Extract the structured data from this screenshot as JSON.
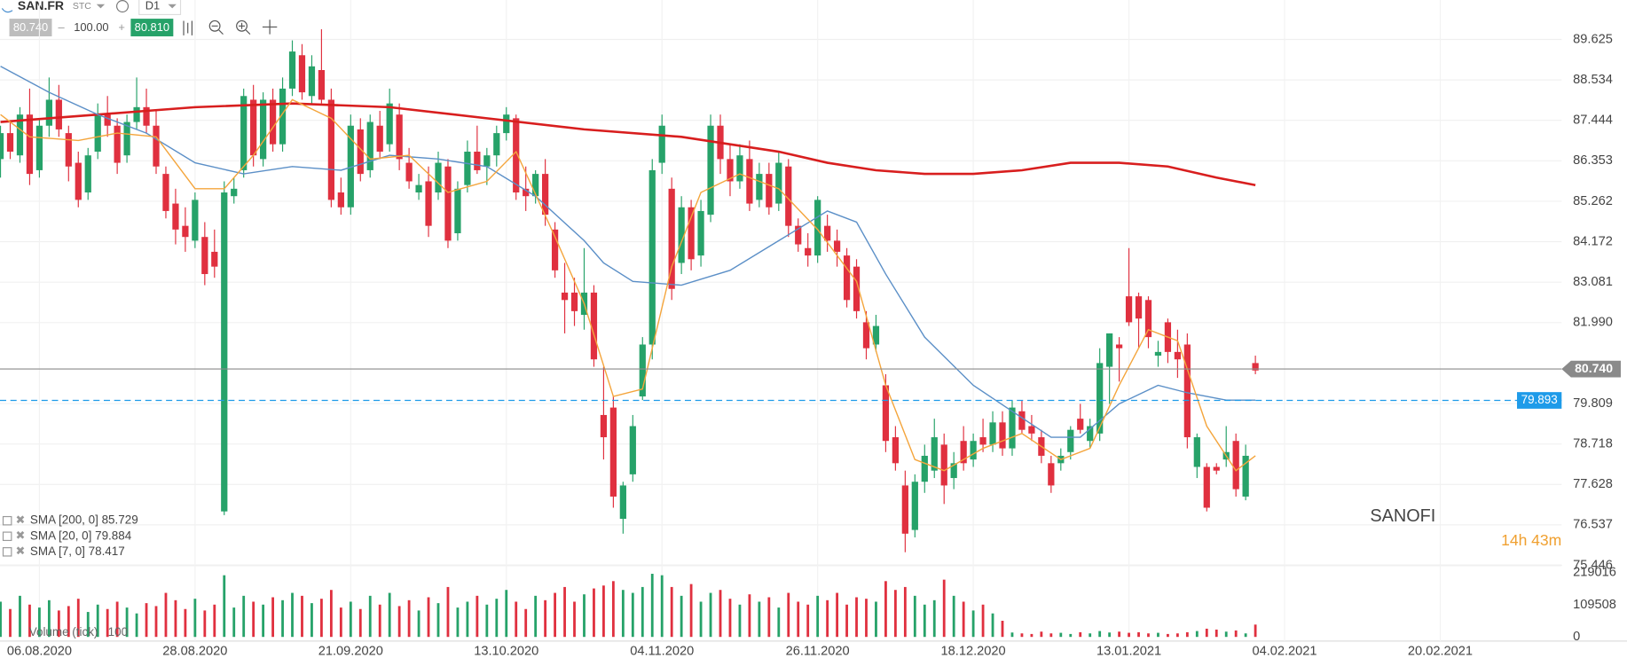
{
  "header": {
    "symbol": "SAN.FR",
    "market": "STC",
    "timeframe": "D1",
    "bid": "80.740",
    "volume": "100.00",
    "ask": "80.810"
  },
  "chart_data": {
    "type": "candlestick",
    "title": "SANOFI",
    "countdown": "14h 43m",
    "xlim": [
      -0.05,
      160.48
    ],
    "xticks": [
      {
        "value": 4,
        "label": "06.08.2020"
      },
      {
        "value": 20,
        "label": "28.08.2020"
      },
      {
        "value": 36,
        "label": "21.09.2020"
      },
      {
        "value": 52,
        "label": "13.10.2020"
      },
      {
        "value": 68,
        "label": "04.11.2020"
      },
      {
        "value": 84,
        "label": "26.11.2020"
      },
      {
        "value": 100,
        "label": "18.12.2020"
      },
      {
        "value": 116,
        "label": "13.01.2021"
      },
      {
        "value": 132,
        "label": "04.02.2021"
      },
      {
        "value": 148,
        "label": "20.02.2021"
      }
    ],
    "ylim": [
      75.446,
      90.688
    ],
    "yticks": [
      {
        "value": 89.625,
        "label": "89.625"
      },
      {
        "value": 88.534,
        "label": "88.534"
      },
      {
        "value": 87.444,
        "label": "87.444"
      },
      {
        "value": 86.353,
        "label": "86.353"
      },
      {
        "value": 85.262,
        "label": "85.262"
      },
      {
        "value": 84.172,
        "label": "84.172"
      },
      {
        "value": 83.081,
        "label": "83.081"
      },
      {
        "value": 81.99,
        "label": "81.990"
      },
      {
        "value": 79.809,
        "label": "79.809"
      },
      {
        "value": 78.718,
        "label": "78.718"
      },
      {
        "value": 77.628,
        "label": "77.628"
      },
      {
        "value": 76.537,
        "label": "76.537"
      },
      {
        "value": 75.446,
        "label": "75.446"
      }
    ],
    "up_color": "#26a269",
    "down_color": "#e0303f",
    "candles": [
      [
        86.4,
        87.3,
        85.9,
        87.1
      ],
      [
        87.1,
        87.4,
        86.4,
        86.6
      ],
      [
        86.5,
        87.8,
        86.3,
        87.6
      ],
      [
        87.6,
        88.3,
        85.7,
        86.0
      ],
      [
        86.1,
        87.5,
        85.9,
        87.3
      ],
      [
        87.3,
        88.6,
        87.0,
        88.0
      ],
      [
        88.0,
        88.4,
        87.0,
        87.2
      ],
      [
        87.1,
        87.3,
        85.8,
        86.2
      ],
      [
        86.3,
        86.6,
        85.1,
        85.3
      ],
      [
        85.5,
        86.7,
        85.3,
        86.5
      ],
      [
        86.6,
        87.9,
        86.4,
        87.6
      ],
      [
        87.6,
        88.1,
        87.0,
        87.3
      ],
      [
        87.3,
        87.5,
        86.0,
        86.3
      ],
      [
        86.5,
        87.6,
        86.3,
        87.4
      ],
      [
        87.4,
        88.6,
        87.2,
        87.8
      ],
      [
        87.8,
        88.3,
        87.1,
        87.3
      ],
      [
        87.3,
        87.7,
        86.0,
        86.2
      ],
      [
        86.0,
        86.2,
        84.8,
        85.0
      ],
      [
        85.2,
        85.6,
        84.1,
        84.5
      ],
      [
        84.6,
        85.1,
        83.9,
        84.3
      ],
      [
        84.2,
        85.5,
        84.0,
        85.3
      ],
      [
        84.3,
        84.7,
        83.0,
        83.3
      ],
      [
        83.9,
        84.5,
        83.2,
        83.5
      ],
      [
        76.9,
        85.8,
        76.8,
        85.5
      ],
      [
        85.4,
        85.9,
        85.2,
        85.6
      ],
      [
        86.1,
        88.3,
        85.9,
        88.1
      ],
      [
        88.0,
        88.4,
        86.2,
        86.5
      ],
      [
        86.4,
        88.2,
        86.2,
        88.0
      ],
      [
        88.0,
        88.3,
        86.6,
        86.8
      ],
      [
        86.8,
        88.6,
        86.6,
        88.3
      ],
      [
        88.3,
        89.6,
        88.1,
        89.3
      ],
      [
        89.2,
        89.5,
        88.0,
        88.2
      ],
      [
        88.1,
        89.2,
        87.9,
        88.9
      ],
      [
        88.8,
        89.9,
        87.9,
        88.0
      ],
      [
        88.0,
        88.3,
        85.1,
        85.3
      ],
      [
        85.5,
        85.9,
        84.9,
        85.1
      ],
      [
        85.1,
        87.6,
        84.9,
        87.3
      ],
      [
        87.2,
        87.5,
        85.8,
        86.0
      ],
      [
        86.1,
        87.6,
        85.9,
        87.4
      ],
      [
        87.3,
        87.7,
        86.4,
        86.6
      ],
      [
        86.8,
        88.3,
        86.6,
        87.9
      ],
      [
        87.6,
        87.9,
        86.1,
        86.4
      ],
      [
        86.3,
        86.7,
        85.6,
        85.8
      ],
      [
        85.5,
        86.0,
        85.3,
        85.7
      ],
      [
        85.8,
        86.2,
        84.3,
        84.6
      ],
      [
        85.5,
        86.6,
        85.3,
        86.3
      ],
      [
        86.2,
        86.4,
        84.0,
        84.2
      ],
      [
        84.4,
        85.8,
        84.2,
        85.6
      ],
      [
        85.7,
        86.9,
        85.5,
        86.6
      ],
      [
        86.6,
        87.3,
        86.0,
        86.1
      ],
      [
        86.2,
        86.7,
        85.7,
        86.5
      ],
      [
        86.5,
        87.3,
        86.2,
        87.1
      ],
      [
        87.1,
        87.8,
        86.9,
        87.6
      ],
      [
        87.5,
        87.6,
        85.3,
        85.5
      ],
      [
        85.6,
        86.2,
        85.0,
        85.4
      ],
      [
        85.4,
        86.1,
        85.2,
        86.0
      ],
      [
        86.0,
        86.4,
        84.6,
        84.9
      ],
      [
        84.5,
        84.7,
        83.2,
        83.4
      ],
      [
        82.8,
        83.6,
        81.7,
        82.6
      ],
      [
        82.8,
        83.2,
        81.9,
        82.3
      ],
      [
        82.2,
        84.0,
        81.8,
        82.8
      ],
      [
        82.8,
        83.0,
        80.8,
        81.0
      ],
      [
        79.5,
        80.8,
        78.3,
        78.9
      ],
      [
        79.7,
        80.0,
        77.0,
        77.3
      ],
      [
        76.7,
        77.7,
        76.3,
        77.6
      ],
      [
        77.9,
        79.5,
        77.7,
        79.2
      ],
      [
        80.0,
        81.6,
        79.9,
        81.4
      ],
      [
        81.4,
        86.4,
        81.0,
        86.1
      ],
      [
        86.3,
        87.6,
        86.0,
        87.3
      ],
      [
        85.6,
        85.9,
        82.6,
        82.9
      ],
      [
        83.6,
        85.4,
        83.3,
        85.1
      ],
      [
        85.1,
        85.3,
        83.4,
        83.7
      ],
      [
        83.8,
        85.3,
        83.5,
        85.0
      ],
      [
        84.9,
        87.6,
        84.7,
        87.3
      ],
      [
        87.3,
        87.6,
        86.0,
        86.4
      ],
      [
        86.4,
        86.8,
        85.4,
        85.8
      ],
      [
        85.8,
        86.8,
        85.6,
        86.5
      ],
      [
        86.4,
        86.9,
        85.0,
        85.2
      ],
      [
        85.3,
        86.3,
        85.1,
        86.0
      ],
      [
        86.0,
        86.3,
        84.9,
        85.1
      ],
      [
        85.2,
        86.6,
        85.0,
        86.3
      ],
      [
        86.2,
        86.4,
        84.3,
        84.6
      ],
      [
        84.6,
        84.8,
        83.9,
        84.1
      ],
      [
        84.0,
        84.4,
        83.5,
        83.8
      ],
      [
        83.8,
        85.4,
        83.6,
        85.3
      ],
      [
        84.6,
        84.9,
        83.9,
        84.2
      ],
      [
        84.2,
        84.5,
        83.5,
        83.9
      ],
      [
        83.8,
        84.0,
        82.4,
        82.6
      ],
      [
        83.5,
        83.7,
        82.1,
        82.3
      ],
      [
        82.0,
        82.3,
        81.0,
        81.3
      ],
      [
        81.4,
        82.2,
        81.2,
        81.9
      ],
      [
        80.3,
        80.6,
        78.5,
        78.8
      ],
      [
        78.9,
        79.2,
        78.0,
        78.2
      ],
      [
        77.6,
        78.0,
        75.8,
        76.3
      ],
      [
        76.4,
        77.9,
        76.2,
        77.7
      ],
      [
        77.7,
        78.7,
        77.4,
        78.4
      ],
      [
        78.0,
        79.4,
        77.8,
        78.9
      ],
      [
        78.7,
        79.0,
        77.1,
        77.6
      ],
      [
        77.8,
        78.5,
        77.5,
        78.2
      ],
      [
        78.8,
        79.2,
        78.0,
        78.2
      ],
      [
        78.3,
        79.0,
        78.1,
        78.8
      ],
      [
        78.9,
        79.4,
        78.5,
        78.7
      ],
      [
        78.7,
        79.6,
        78.5,
        79.3
      ],
      [
        79.3,
        79.6,
        78.4,
        78.6
      ],
      [
        78.6,
        79.9,
        78.4,
        79.7
      ],
      [
        79.6,
        79.9,
        79.0,
        79.1
      ],
      [
        79.2,
        79.5,
        78.8,
        79.0
      ],
      [
        78.9,
        79.1,
        78.2,
        78.4
      ],
      [
        78.2,
        78.4,
        77.4,
        77.6
      ],
      [
        78.2,
        78.6,
        78.0,
        78.4
      ],
      [
        78.5,
        79.2,
        78.3,
        79.1
      ],
      [
        79.4,
        79.8,
        79.0,
        79.1
      ],
      [
        78.8,
        79.4,
        78.6,
        79.2
      ],
      [
        79.0,
        81.3,
        78.8,
        80.9
      ],
      [
        80.8,
        81.7,
        79.8,
        81.7
      ],
      [
        81.4,
        81.6,
        80.4,
        81.3
      ],
      [
        82.7,
        84.0,
        81.9,
        82.0
      ],
      [
        82.7,
        82.8,
        81.3,
        82.1
      ],
      [
        82.6,
        82.7,
        81.3,
        81.6
      ],
      [
        81.1,
        81.5,
        80.8,
        81.2
      ],
      [
        82.0,
        82.1,
        80.9,
        81.2
      ],
      [
        81.2,
        81.8,
        80.5,
        81.0
      ],
      [
        81.4,
        81.7,
        78.6,
        78.9
      ],
      [
        78.1,
        79.0,
        77.8,
        78.9
      ],
      [
        78.1,
        78.2,
        76.9,
        77.0
      ],
      [
        78.1,
        78.2,
        77.9,
        78.0
      ],
      [
        78.3,
        79.2,
        78.1,
        78.5
      ],
      [
        78.8,
        79.0,
        77.3,
        77.5
      ],
      [
        77.3,
        78.7,
        77.2,
        78.4
      ],
      [
        80.9,
        81.1,
        80.6,
        80.7
      ]
    ],
    "volume": {
      "name": "Volume (tick)",
      "period": "100",
      "ylim": [
        0,
        236680
      ],
      "yticks": [
        0,
        109508,
        219016
      ],
      "values": [
        120000,
        95000,
        140000,
        110000,
        100000,
        125000,
        90000,
        105000,
        130000,
        85000,
        110000,
        95000,
        120000,
        100000,
        80000,
        115000,
        105000,
        150000,
        125000,
        95000,
        130000,
        90000,
        110000,
        210000,
        100000,
        140000,
        120000,
        110000,
        135000,
        125000,
        150000,
        140000,
        115000,
        130000,
        160000,
        100000,
        120000,
        95000,
        140000,
        110000,
        150000,
        105000,
        125000,
        90000,
        135000,
        115000,
        170000,
        100000,
        120000,
        140000,
        110000,
        130000,
        160000,
        120000,
        95000,
        140000,
        125000,
        150000,
        170000,
        120000,
        145000,
        165000,
        175000,
        190000,
        160000,
        150000,
        170000,
        215000,
        210000,
        170000,
        140000,
        180000,
        120000,
        150000,
        160000,
        130000,
        110000,
        145000,
        120000,
        135000,
        100000,
        150000,
        120000,
        110000,
        140000,
        125000,
        150000,
        110000,
        135000,
        130000,
        120000,
        190000,
        160000,
        170000,
        140000,
        110000,
        125000,
        195000,
        140000,
        120000,
        90000,
        110000,
        80000,
        55000,
        15000,
        12000,
        10000,
        18000,
        12000,
        14000,
        10000,
        16000,
        12000,
        20000,
        15000,
        18000,
        14000,
        16000,
        12000,
        14000,
        10000,
        12000,
        16000,
        20000,
        28000,
        25000,
        18000,
        22000,
        12000,
        42000
      ]
    },
    "series": [
      {
        "name": "SMA [200, 0] 85.729",
        "color": "#d81e1e",
        "x": [
          0,
          10,
          20,
          30,
          40,
          50,
          60,
          70,
          80,
          85,
          90,
          95,
          100,
          105,
          110,
          115,
          120,
          125,
          129
        ],
        "values": [
          87.4,
          87.6,
          87.8,
          87.9,
          87.8,
          87.5,
          87.2,
          87.0,
          86.6,
          86.3,
          86.1,
          86.0,
          86.0,
          86.1,
          86.3,
          86.3,
          86.2,
          85.9,
          85.7
        ]
      },
      {
        "name": "SMA [20, 0] 79.884",
        "color": "#5b8fc7",
        "x": [
          0,
          5,
          10,
          15,
          20,
          25,
          30,
          35,
          40,
          45,
          50,
          55,
          60,
          62,
          65,
          70,
          75,
          80,
          85,
          88,
          91,
          95,
          100,
          104,
          108,
          111,
          115,
          119,
          122,
          126,
          129
        ],
        "values": [
          88.9,
          88.2,
          87.6,
          87.1,
          86.3,
          86.0,
          86.2,
          86.1,
          86.5,
          86.4,
          86.2,
          85.4,
          84.2,
          83.6,
          83.1,
          83.0,
          83.4,
          84.2,
          85.0,
          84.7,
          83.3,
          81.6,
          80.3,
          79.6,
          78.9,
          78.9,
          79.8,
          80.3,
          80.1,
          79.9,
          79.9
        ]
      },
      {
        "name": "SMA [7, 0] 78.417",
        "color": "#f4a53c",
        "x": [
          0,
          3,
          8,
          12,
          16,
          20,
          23,
          26,
          30,
          34,
          38,
          42,
          46,
          50,
          53,
          57,
          60,
          63,
          66,
          69,
          72,
          76,
          80,
          84,
          88,
          91,
          94,
          97,
          101,
          105,
          109,
          112,
          115,
          118,
          121,
          124,
          127,
          129
        ],
        "values": [
          87.6,
          87.0,
          86.9,
          87.1,
          87.0,
          85.6,
          85.6,
          86.5,
          88.0,
          87.5,
          86.4,
          86.5,
          85.5,
          85.8,
          86.6,
          84.3,
          82.5,
          80.0,
          80.2,
          83.5,
          85.5,
          86.0,
          85.6,
          84.5,
          83.1,
          80.3,
          78.3,
          78.0,
          78.6,
          79.0,
          78.3,
          78.6,
          80.3,
          81.8,
          81.5,
          79.2,
          78.0,
          78.4
        ]
      }
    ],
    "price_lines": [
      {
        "value": 80.74,
        "label": "80.740",
        "color": "#8a8a8a",
        "style": "solid"
      },
      {
        "value": 79.893,
        "label": "79.893",
        "color": "#1e9be9",
        "style": "dashed"
      }
    ]
  }
}
